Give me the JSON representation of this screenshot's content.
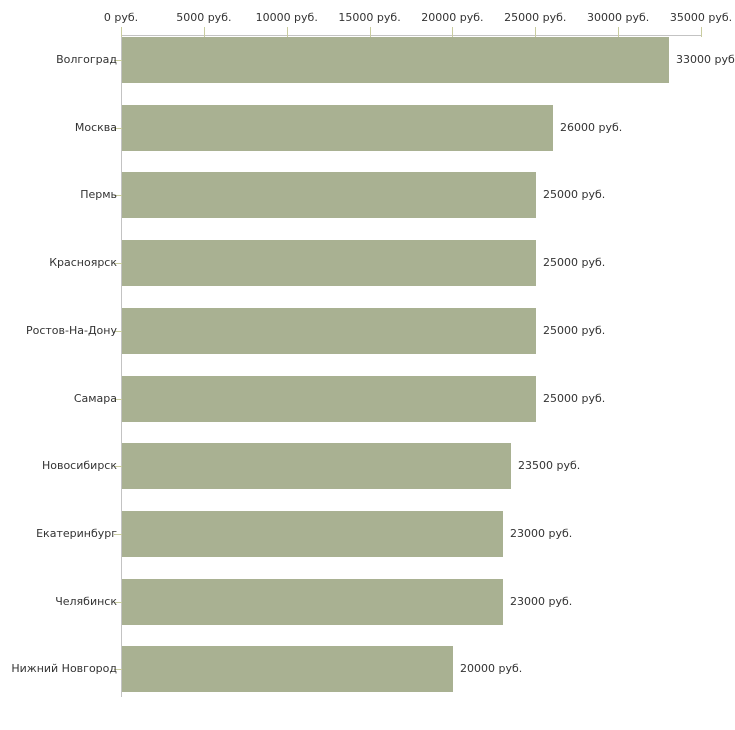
{
  "chart_data": {
    "type": "bar",
    "orientation": "horizontal",
    "title": "",
    "xlabel": "",
    "ylabel": "",
    "categories": [
      "Волгоград",
      "Москва",
      "Пермь",
      "Красноярск",
      "Ростов-На-Дону",
      "Самара",
      "Новосибирск",
      "Екатеринбург",
      "Челябинск",
      "Нижний Новгород"
    ],
    "values": [
      33000,
      26000,
      25000,
      25000,
      25000,
      25000,
      23500,
      23000,
      23000,
      20000
    ],
    "value_labels": [
      "33000 руб",
      "26000 руб.",
      "25000 руб.",
      "25000 руб.",
      "25000 руб.",
      "25000 руб.",
      "23500 руб.",
      "23000 руб.",
      "23000 руб.",
      "20000 руб."
    ],
    "x_axis": {
      "position": "top",
      "min": 0,
      "max": 35000,
      "tick_values": [
        0,
        5000,
        10000,
        15000,
        20000,
        25000,
        30000,
        35000
      ],
      "tick_labels": [
        "0 руб.",
        "5000 руб.",
        "10000 руб.",
        "15000 руб.",
        "20000 руб.",
        "25000 руб.",
        "30000 руб.",
        "35000 руб."
      ]
    },
    "legend": null,
    "grid": false,
    "colors": {
      "bar": "#a9b192",
      "axis_line": "#c3c3c3",
      "tick_mark": "#c9cc9f",
      "text": "#333333",
      "background": "#ffffff"
    }
  }
}
